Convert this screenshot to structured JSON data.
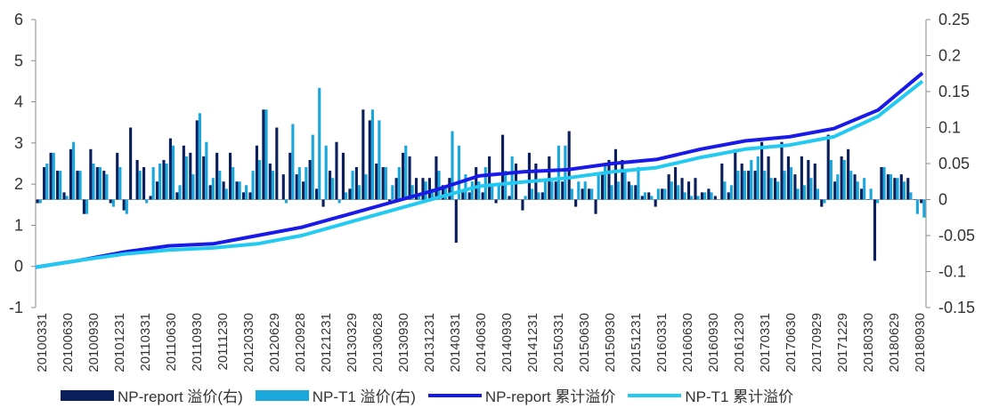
{
  "chart_data": {
    "type": "bar+line",
    "left_axis": {
      "ticks": [
        "6",
        "5",
        "4",
        "3",
        "2",
        "1",
        "0",
        "-1"
      ],
      "ylim": [
        -1,
        6
      ]
    },
    "right_axis": {
      "ticks": [
        "0.25",
        "0.2",
        "0.15",
        "0.1",
        "0.05",
        "0",
        "-0.05",
        "-0.1",
        "-0.15"
      ],
      "ylim": [
        -0.15,
        0.25
      ]
    },
    "x_tick_labels": [
      "20100331",
      "20100630",
      "20100930",
      "20101231",
      "20110331",
      "20110630",
      "20110930",
      "20111230",
      "20120330",
      "20120629",
      "20120928",
      "20121231",
      "20130329",
      "20130628",
      "20130930",
      "20131231",
      "20140331",
      "20140630",
      "20140930",
      "20141231",
      "20150331",
      "20150630",
      "20150930",
      "20151231",
      "20160331",
      "20160630",
      "20160930",
      "20161230",
      "20170331",
      "20170630",
      "20170929",
      "20171229",
      "20180330",
      "20180629",
      "20180930"
    ],
    "series": [
      {
        "name": "NP-report 溢价(右)",
        "kind": "bar",
        "axis": "right",
        "color": "#0a1f5c",
        "values": [
          -0.005,
          0.045,
          0.065,
          0.04,
          0.01,
          0.07,
          0.04,
          -0.02,
          0.07,
          0.045,
          0.04,
          -0.005,
          0.065,
          -0.015,
          0.1,
          0.055,
          0.045,
          0.005,
          0.025,
          0.055,
          0.085,
          0.01,
          0.075,
          0.065,
          0.11,
          0.06,
          0.02,
          0.065,
          0.025,
          0.065,
          0.025,
          0.01,
          0.01,
          0.075,
          0.125,
          0.05,
          0.1,
          0.035,
          0.065,
          0.035,
          0.025,
          0.055,
          0.015,
          -0.01,
          0.04,
          0.08,
          0.065,
          0.015,
          0.045,
          0.125,
          0.11,
          0.05,
          0.045,
          -0.005,
          0.03,
          0.065,
          0.06,
          0.03,
          0.03,
          0.03,
          0.06,
          0.02,
          0.03,
          -0.06,
          0.01,
          0.01,
          0.045,
          0.01,
          0.06,
          -0.005,
          0.09,
          0.005,
          0.05,
          -0.015,
          0.065,
          0.05,
          0.01,
          0.06,
          0.025,
          0.025,
          0.095,
          -0.01,
          0.015,
          0.015,
          -0.02,
          0.035,
          0.055,
          0.07,
          0.055,
          0.025,
          0.02,
          0.005,
          0.01,
          -0.01,
          0.015,
          0.035,
          0.045,
          0.03,
          0.025,
          0.03,
          0.01,
          0.015,
          0.005,
          0.05,
          0.01,
          0.07,
          0.05,
          0.04,
          0.04,
          0.08,
          0.06,
          0.03,
          0.08,
          0.06,
          0.035,
          0.06,
          0.055,
          0.05,
          -0.01,
          0.09,
          0.025,
          0.06,
          0.07,
          0.035,
          0.015,
          0.0,
          -0.085,
          0.045,
          0.035,
          0.03,
          0.035,
          0.03,
          0.0,
          -0.005
        ],
        "note": "one bar per month"
      },
      {
        "name": "NP-T1 溢价(右)",
        "kind": "bar",
        "axis": "right",
        "color": "#1aa7dc",
        "values": [
          -0.005,
          0.05,
          0.065,
          0.04,
          0.005,
          0.08,
          0.04,
          -0.02,
          0.05,
          0.045,
          0.035,
          -0.01,
          0.045,
          -0.02,
          0.0,
          0.04,
          -0.005,
          0.045,
          0.05,
          0.05,
          0.075,
          0.02,
          0.06,
          0.035,
          0.12,
          0.08,
          0.03,
          0.04,
          0.015,
          0.045,
          0.025,
          0.02,
          0.04,
          0.055,
          0.125,
          0.04,
          0.0,
          -0.005,
          0.105,
          0.045,
          0.045,
          0.09,
          0.155,
          0.075,
          0.03,
          -0.005,
          0.01,
          0.04,
          0.02,
          0.035,
          0.125,
          0.11,
          0.045,
          0.02,
          0.045,
          0.075,
          0.02,
          0.005,
          0.025,
          0.015,
          0.04,
          0.02,
          0.095,
          0.075,
          0.035,
          0.025,
          0.025,
          0.045,
          0.02,
          0.02,
          0.04,
          0.06,
          0.0,
          0.005,
          0.015,
          0.01,
          0.025,
          0.025,
          0.075,
          0.075,
          0.015,
          0.025,
          0.025,
          0.015,
          0.035,
          0.05,
          0.02,
          0.025,
          0.04,
          0.02,
          0.045,
          0.01,
          0.005,
          0.015,
          0.015,
          0.025,
          0.02,
          0.01,
          0.005,
          0.005,
          0.01,
          0.01,
          0.0,
          0.025,
          0.02,
          0.04,
          0.04,
          0.055,
          0.06,
          0.04,
          0.03,
          0.025,
          0.04,
          0.045,
          0.015,
          0.02,
          0.03,
          0.015,
          -0.005,
          0.055,
          0.035,
          0.055,
          0.04,
          0.025,
          0.03,
          0.015,
          -0.005,
          0.045,
          0.035,
          0.03,
          0.025,
          0.01,
          -0.02,
          -0.025
        ],
        "note": "one bar per month"
      },
      {
        "name": "NP-report 累计溢价",
        "kind": "line",
        "axis": "left",
        "color": "#1a1ae6",
        "x_fraction": [
          0,
          0.05,
          0.1,
          0.15,
          0.2,
          0.25,
          0.3,
          0.35,
          0.4,
          0.45,
          0.5,
          0.55,
          0.6,
          0.65,
          0.7,
          0.75,
          0.8,
          0.85,
          0.9,
          0.95,
          1.0
        ],
        "values": [
          -0.02,
          0.15,
          0.35,
          0.5,
          0.55,
          0.75,
          0.95,
          1.25,
          1.55,
          1.85,
          2.2,
          2.3,
          2.35,
          2.5,
          2.6,
          2.85,
          3.05,
          3.15,
          3.35,
          3.8,
          4.7
        ]
      },
      {
        "name": "NP-T1 累计溢价",
        "kind": "line",
        "axis": "left",
        "color": "#22c9f0",
        "x_fraction": [
          0,
          0.05,
          0.1,
          0.15,
          0.2,
          0.25,
          0.3,
          0.35,
          0.4,
          0.45,
          0.5,
          0.55,
          0.6,
          0.65,
          0.7,
          0.75,
          0.8,
          0.85,
          0.9,
          0.95,
          1.0
        ],
        "values": [
          -0.02,
          0.15,
          0.3,
          0.4,
          0.45,
          0.55,
          0.75,
          1.05,
          1.35,
          1.65,
          1.95,
          2.05,
          2.15,
          2.3,
          2.4,
          2.65,
          2.85,
          2.95,
          3.15,
          3.65,
          4.5
        ]
      }
    ]
  },
  "legend": {
    "np_report_bar": "NP-report 溢价(右)",
    "np_t1_bar": "NP-T1 溢价(右)",
    "np_report_line": "NP-report 累计溢价",
    "np_t1_line": "NP-T1 累计溢价"
  },
  "colors": {
    "np_report_bar": "#0a1f5c",
    "np_t1_bar": "#1aa7dc",
    "np_report_line": "#1a1ae6",
    "np_t1_line": "#22c9f0"
  }
}
